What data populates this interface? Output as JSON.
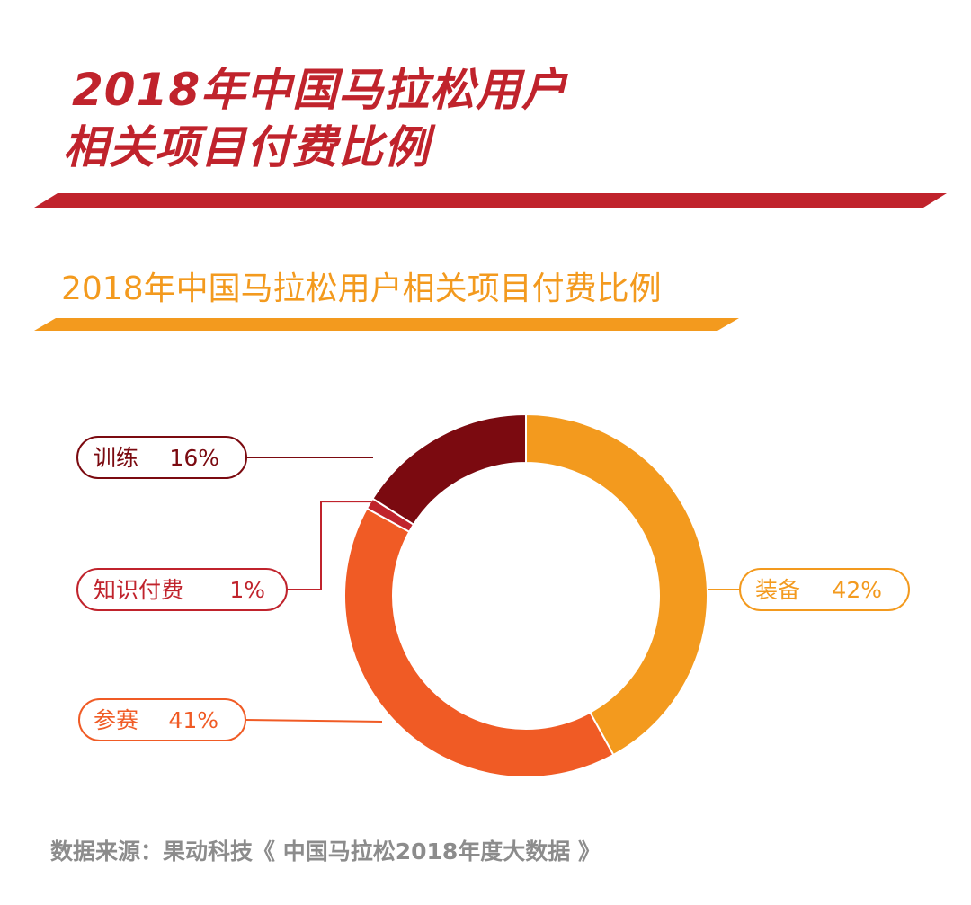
{
  "header": {
    "title_line1": "2018年中国马拉松用户",
    "title_line2": "相关项目付费比例",
    "subtitle": "2018年中国马拉松用户相关项目付费比例"
  },
  "chart_data": {
    "type": "pie",
    "donut": true,
    "title": "2018年中国马拉松用户相关项目付费比例",
    "slices": [
      {
        "label": "装备",
        "value": 42,
        "display": "42%",
        "color": "#f39a1e"
      },
      {
        "label": "参赛",
        "value": 41,
        "display": "41%",
        "color": "#f05b25"
      },
      {
        "label": "知识付费",
        "value": 1,
        "display": "1%",
        "color": "#c0232c"
      },
      {
        "label": "训练",
        "value": 16,
        "display": "16%",
        "color": "#7b0a10"
      }
    ],
    "unit": "%"
  },
  "footer": {
    "source": "数据来源：果动科技《 中国马拉松2018年度大数据 》"
  },
  "colors": {
    "red": "#c0232c",
    "orange": "#f39a1e",
    "gray_text": "#8c8c8c"
  }
}
